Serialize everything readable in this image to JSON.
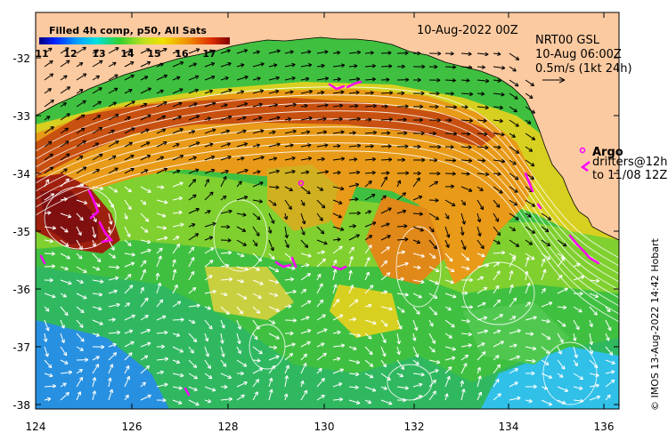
{
  "map": {
    "header_date": "10-Aug-2022 00Z",
    "colorbar": {
      "title": "Filled 4h comp, p50, All Sats",
      "ticks": [
        "11",
        "12",
        "13",
        "14",
        "15",
        "16",
        "17"
      ]
    },
    "current_legend": {
      "line1": "NRT00 GSL",
      "line2": "10-Aug 06:00Z",
      "line3": "0.5m/s (1kt 24h)"
    },
    "argo_legend": {
      "title": "Argo",
      "line1": "drifters@12h",
      "line2": "to 11/08 12Z"
    },
    "credit": "© IMOS 13-Aug-2022 14:42 Hobart",
    "x_ticks": [
      "124",
      "126",
      "128",
      "130",
      "132",
      "134",
      "136"
    ],
    "y_ticks": [
      "-32",
      "-33",
      "-34",
      "-35",
      "-36",
      "-37",
      "-38"
    ],
    "colors": {
      "land": "#fccaa0",
      "warm": "#c8420a",
      "mid": "#e8a020",
      "cool": "#38c040",
      "cold": "#28a8e8",
      "argo": "#ff00ff"
    }
  }
}
